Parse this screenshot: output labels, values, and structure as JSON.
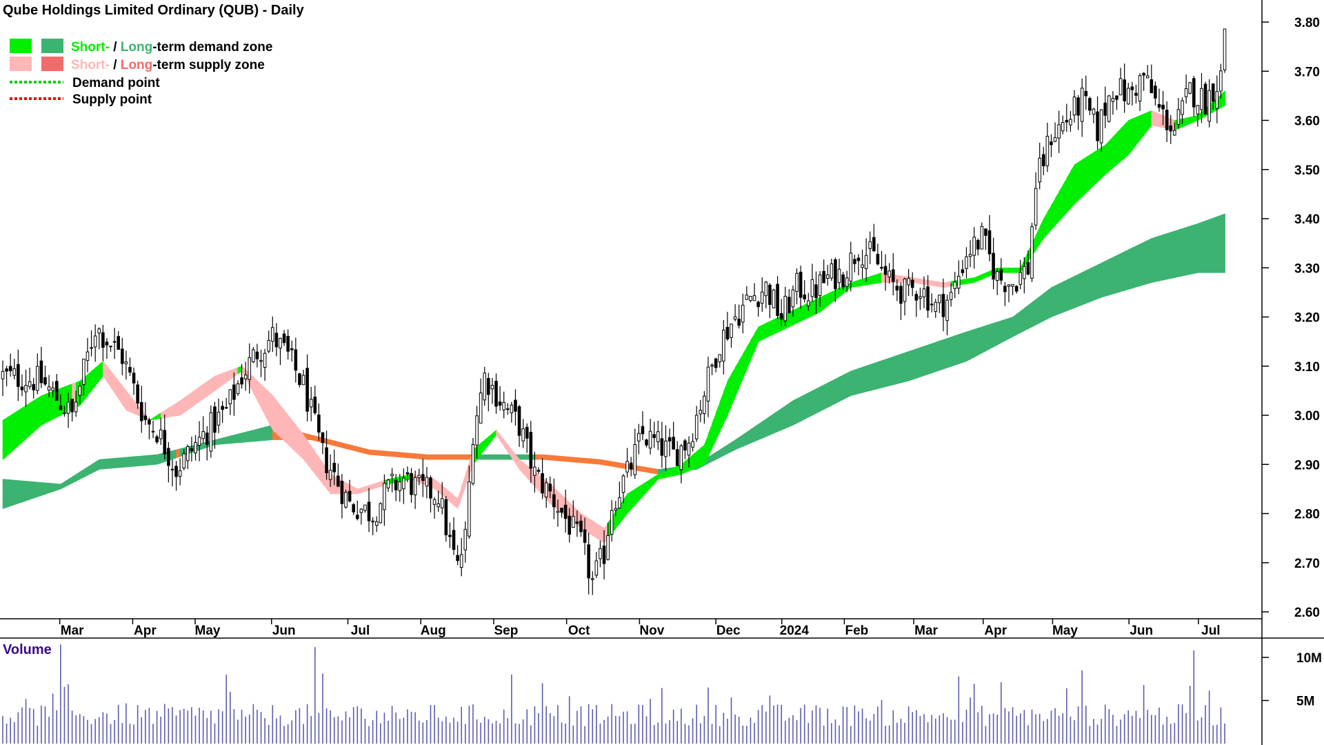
{
  "chart_data": [
    {
      "type": "candlestick",
      "title": "Qube Holdings Limited Ordinary (QUB) - Daily",
      "ylim": [
        2.58,
        3.81
      ],
      "y_ticks": [
        "3.80",
        "3.70",
        "3.60",
        "3.50",
        "3.40",
        "3.30",
        "3.20",
        "3.10",
        "3.00",
        "2.90",
        "2.80",
        "2.70",
        "2.60"
      ],
      "x_ticks": [
        "Mar",
        "Apr",
        "May",
        "Jun",
        "Jul",
        "Aug",
        "Sep",
        "Oct",
        "Nov",
        "Dec",
        "2024",
        "Feb",
        "Mar",
        "Apr",
        "May",
        "Jun",
        "Jul"
      ],
      "legend": {
        "demand_short": "Short-",
        "demand_sep": " / ",
        "demand_long": "Long",
        "demand_rest": "-term demand zone",
        "supply_short": "Short-",
        "supply_sep": " / ",
        "supply_long": "Long",
        "supply_rest": "-term supply zone",
        "demand_point": "Demand point",
        "supply_point": "Supply point"
      },
      "colors": {
        "short_demand": "#00ee00",
        "long_demand": "#3cb371",
        "short_supply": "#ffb6b6",
        "long_supply": "#f77a3a",
        "supply_legend": "#f06b6b",
        "demand_point": "#00cc00",
        "supply_point": "#ee0000",
        "candle": "#000000"
      },
      "close_path": [
        [
          0,
          3.08
        ],
        [
          10,
          3.07
        ],
        [
          18,
          3.0
        ],
        [
          24,
          3.18
        ],
        [
          31,
          3.12
        ],
        [
          37,
          2.99
        ],
        [
          40,
          2.97
        ],
        [
          45,
          2.89
        ],
        [
          52,
          2.96
        ],
        [
          58,
          3.01
        ],
        [
          62,
          3.08
        ],
        [
          66,
          3.13
        ],
        [
          70,
          3.16
        ],
        [
          74,
          3.12
        ],
        [
          78,
          3.06
        ],
        [
          83,
          2.92
        ],
        [
          90,
          2.82
        ],
        [
          96,
          2.8
        ],
        [
          100,
          2.85
        ],
        [
          104,
          2.87
        ],
        [
          108,
          2.85
        ],
        [
          113,
          2.84
        ],
        [
          116,
          2.74
        ],
        [
          118,
          2.69
        ],
        [
          120,
          2.75
        ],
        [
          122,
          2.97
        ],
        [
          125,
          3.08
        ],
        [
          130,
          3.02
        ],
        [
          134,
          2.98
        ],
        [
          138,
          2.88
        ],
        [
          142,
          2.84
        ],
        [
          146,
          2.79
        ],
        [
          150,
          2.74
        ],
        [
          153,
          2.66
        ],
        [
          156,
          2.72
        ],
        [
          158,
          2.82
        ],
        [
          162,
          2.88
        ],
        [
          166,
          2.96
        ],
        [
          170,
          2.94
        ],
        [
          174,
          2.92
        ],
        [
          178,
          2.95
        ],
        [
          182,
          3.05
        ],
        [
          186,
          3.15
        ],
        [
          190,
          3.2
        ],
        [
          194,
          3.24
        ],
        [
          198,
          3.26
        ],
        [
          202,
          3.2
        ],
        [
          206,
          3.26
        ],
        [
          210,
          3.25
        ],
        [
          214,
          3.28
        ],
        [
          218,
          3.29
        ],
        [
          222,
          3.34
        ],
        [
          226,
          3.32
        ],
        [
          230,
          3.27
        ],
        [
          234,
          3.25
        ],
        [
          238,
          3.26
        ],
        [
          242,
          3.22
        ],
        [
          246,
          3.24
        ],
        [
          250,
          3.33
        ],
        [
          254,
          3.36
        ],
        [
          258,
          3.28
        ],
        [
          262,
          3.27
        ],
        [
          266,
          3.3
        ],
        [
          268,
          3.47
        ],
        [
          272,
          3.57
        ],
        [
          276,
          3.6
        ],
        [
          280,
          3.64
        ],
        [
          284,
          3.58
        ],
        [
          288,
          3.67
        ],
        [
          292,
          3.65
        ],
        [
          296,
          3.69
        ],
        [
          300,
          3.62
        ],
        [
          304,
          3.58
        ],
        [
          308,
          3.66
        ],
        [
          312,
          3.64
        ],
        [
          316,
          3.69
        ],
        [
          317,
          3.79
        ]
      ],
      "short_ma_upper": [
        [
          0,
          2.99
        ],
        [
          10,
          3.04
        ],
        [
          20,
          3.07
        ],
        [
          26,
          3.11
        ],
        [
          32,
          3.05
        ],
        [
          38,
          2.99
        ],
        [
          46,
          3.03
        ],
        [
          55,
          3.08
        ],
        [
          62,
          3.1
        ],
        [
          70,
          3.04
        ],
        [
          78,
          2.96
        ],
        [
          85,
          2.88
        ],
        [
          92,
          2.85
        ],
        [
          100,
          2.87
        ],
        [
          106,
          2.88
        ],
        [
          112,
          2.87
        ],
        [
          118,
          2.83
        ],
        [
          122,
          2.93
        ],
        [
          128,
          2.97
        ],
        [
          134,
          2.91
        ],
        [
          142,
          2.86
        ],
        [
          150,
          2.8
        ],
        [
          156,
          2.77
        ],
        [
          162,
          2.84
        ],
        [
          170,
          2.88
        ],
        [
          176,
          2.9
        ],
        [
          182,
          2.94
        ],
        [
          188,
          3.07
        ],
        [
          196,
          3.18
        ],
        [
          204,
          3.21
        ],
        [
          212,
          3.24
        ],
        [
          220,
          3.27
        ],
        [
          228,
          3.29
        ],
        [
          236,
          3.28
        ],
        [
          244,
          3.27
        ],
        [
          252,
          3.28
        ],
        [
          258,
          3.3
        ],
        [
          264,
          3.3
        ],
        [
          270,
          3.4
        ],
        [
          278,
          3.51
        ],
        [
          286,
          3.55
        ],
        [
          292,
          3.6
        ],
        [
          298,
          3.62
        ],
        [
          304,
          3.6
        ],
        [
          310,
          3.61
        ],
        [
          317,
          3.66
        ]
      ],
      "short_ma_lower": [
        [
          0,
          2.91
        ],
        [
          10,
          2.98
        ],
        [
          20,
          3.02
        ],
        [
          26,
          3.08
        ],
        [
          32,
          3.01
        ],
        [
          38,
          2.99
        ],
        [
          46,
          3.0
        ],
        [
          55,
          3.05
        ],
        [
          62,
          3.09
        ],
        [
          70,
          2.97
        ],
        [
          78,
          2.91
        ],
        [
          85,
          2.84
        ],
        [
          92,
          2.84
        ],
        [
          100,
          2.86
        ],
        [
          106,
          2.87
        ],
        [
          112,
          2.85
        ],
        [
          118,
          2.81
        ],
        [
          122,
          2.9
        ],
        [
          128,
          2.96
        ],
        [
          134,
          2.89
        ],
        [
          142,
          2.82
        ],
        [
          150,
          2.77
        ],
        [
          156,
          2.74
        ],
        [
          162,
          2.8
        ],
        [
          170,
          2.87
        ],
        [
          176,
          2.88
        ],
        [
          182,
          2.9
        ],
        [
          188,
          3.0
        ],
        [
          196,
          3.15
        ],
        [
          204,
          3.18
        ],
        [
          212,
          3.21
        ],
        [
          220,
          3.26
        ],
        [
          228,
          3.27
        ],
        [
          236,
          3.27
        ],
        [
          244,
          3.26
        ],
        [
          252,
          3.27
        ],
        [
          258,
          3.29
        ],
        [
          264,
          3.29
        ],
        [
          270,
          3.36
        ],
        [
          278,
          3.43
        ],
        [
          286,
          3.49
        ],
        [
          292,
          3.53
        ],
        [
          298,
          3.59
        ],
        [
          304,
          3.58
        ],
        [
          310,
          3.6
        ],
        [
          317,
          3.63
        ]
      ],
      "long_ma_upper": [
        [
          0,
          2.87
        ],
        [
          15,
          2.86
        ],
        [
          25,
          2.91
        ],
        [
          40,
          2.92
        ],
        [
          55,
          2.95
        ],
        [
          70,
          2.98
        ],
        [
          80,
          2.96
        ],
        [
          95,
          2.93
        ],
        [
          110,
          2.92
        ],
        [
          125,
          2.92
        ],
        [
          140,
          2.92
        ],
        [
          155,
          2.91
        ],
        [
          170,
          2.89
        ],
        [
          180,
          2.9
        ],
        [
          190,
          2.95
        ],
        [
          205,
          3.03
        ],
        [
          220,
          3.09
        ],
        [
          235,
          3.13
        ],
        [
          250,
          3.17
        ],
        [
          262,
          3.2
        ],
        [
          272,
          3.26
        ],
        [
          285,
          3.31
        ],
        [
          298,
          3.36
        ],
        [
          310,
          3.39
        ],
        [
          317,
          3.41
        ]
      ],
      "long_ma_lower": [
        [
          0,
          2.81
        ],
        [
          15,
          2.85
        ],
        [
          25,
          2.89
        ],
        [
          40,
          2.9
        ],
        [
          55,
          2.94
        ],
        [
          70,
          2.95
        ],
        [
          80,
          2.95
        ],
        [
          95,
          2.92
        ],
        [
          110,
          2.91
        ],
        [
          125,
          2.91
        ],
        [
          140,
          2.91
        ],
        [
          155,
          2.9
        ],
        [
          170,
          2.88
        ],
        [
          180,
          2.89
        ],
        [
          190,
          2.93
        ],
        [
          205,
          2.98
        ],
        [
          220,
          3.04
        ],
        [
          235,
          3.07
        ],
        [
          250,
          3.11
        ],
        [
          262,
          3.16
        ],
        [
          272,
          3.2
        ],
        [
          285,
          3.24
        ],
        [
          298,
          3.27
        ],
        [
          310,
          3.29
        ],
        [
          317,
          3.29
        ]
      ],
      "candle_count": 318
    },
    {
      "type": "bar",
      "title": "Volume",
      "y_ticks": [
        "10M",
        "5M"
      ],
      "ylim": [
        0,
        12
      ],
      "unit": "M",
      "count": 318
    }
  ]
}
